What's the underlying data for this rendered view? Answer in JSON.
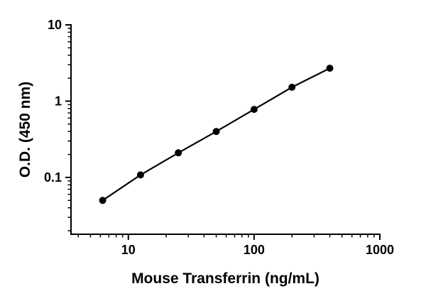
{
  "figure": {
    "background": "#ffffff"
  },
  "chart_data": {
    "type": "line",
    "title": "",
    "xlabel": "Mouse Transferrin (ng/mL)",
    "ylabel": "O.D. (450 nm)",
    "x_scale": "log",
    "y_scale": "log",
    "xlim": [
      3.5,
      1000
    ],
    "ylim": [
      0.018,
      10
    ],
    "x_ticks": [
      10,
      100,
      1000
    ],
    "y_ticks": [
      0.1,
      1,
      10
    ],
    "grid": false,
    "legend": "none",
    "markers": true,
    "series": [
      {
        "marker": "filled-circle",
        "color": "#000000",
        "points": [
          {
            "x": 6.25,
            "y": 0.05
          },
          {
            "x": 12.5,
            "y": 0.108
          },
          {
            "x": 25,
            "y": 0.21
          },
          {
            "x": 50,
            "y": 0.4
          },
          {
            "x": 100,
            "y": 0.78
          },
          {
            "x": 200,
            "y": 1.52
          },
          {
            "x": 400,
            "y": 2.7
          }
        ]
      }
    ]
  }
}
